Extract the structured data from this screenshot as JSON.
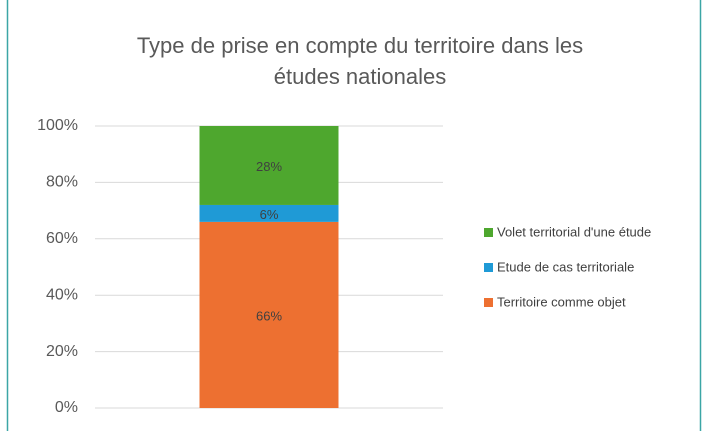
{
  "chart_data": {
    "type": "stacked_bar",
    "title": "Type de prise en compte du territoire dans les études nationales",
    "categories": [
      null
    ],
    "series": [
      {
        "name": "Territoire comme objet",
        "color": "#ed7031",
        "values": [
          66
        ],
        "value_labels": [
          "66%"
        ]
      },
      {
        "name": "Etude de cas territoriale",
        "color": "#1f9ad6",
        "values": [
          6
        ],
        "value_labels": [
          "6%"
        ]
      },
      {
        "name": "Volet territorial d'une étude",
        "color": "#4ea72e",
        "values": [
          28
        ],
        "value_labels": [
          "28%"
        ]
      }
    ],
    "ylim": [
      0,
      100
    ],
    "yticks": [
      {
        "value": 0,
        "label": "0%"
      },
      {
        "value": 20,
        "label": "20%"
      },
      {
        "value": 40,
        "label": "40%"
      },
      {
        "value": 60,
        "label": "60%"
      },
      {
        "value": 80,
        "label": "80%"
      },
      {
        "value": 100,
        "label": "100%"
      }
    ],
    "grid": true,
    "legend": "right"
  }
}
